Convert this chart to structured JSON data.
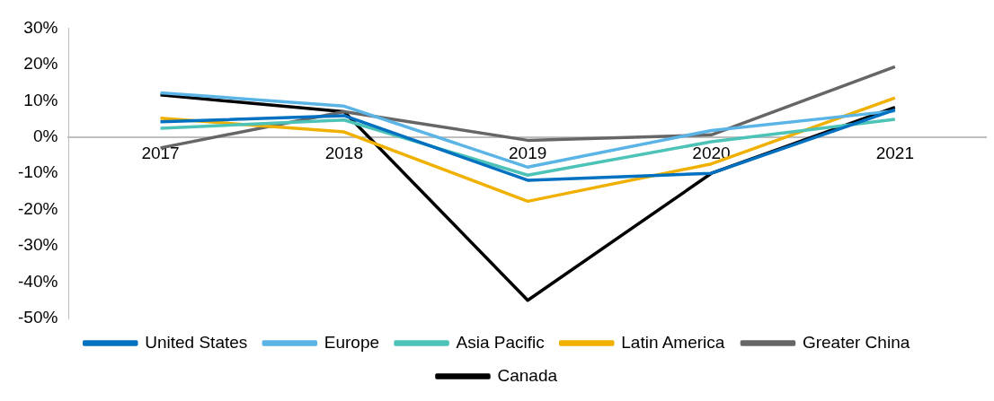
{
  "chart_data": {
    "type": "line",
    "categories": [
      "2017",
      "2018",
      "2019",
      "2020",
      "2021"
    ],
    "series": [
      {
        "name": "United States",
        "color": "#0070c0",
        "values": [
          4.2,
          5.9,
          -11.9,
          -10,
          7.5
        ]
      },
      {
        "name": "Europe",
        "color": "#5ab4e5",
        "values": [
          12.2,
          8.5,
          -8.3,
          1.8,
          7.2
        ]
      },
      {
        "name": "Asia Pacific",
        "color": "#4dc3b8",
        "values": [
          2.4,
          4.7,
          -10.5,
          -1.3,
          4.9
        ]
      },
      {
        "name": "Latin America",
        "color": "#f0b000",
        "values": [
          5.2,
          1.4,
          -17.7,
          -7.4,
          10.8
        ]
      },
      {
        "name": "Greater China",
        "color": "#666666",
        "values": [
          -3,
          7,
          -0.9,
          0.6,
          19.4
        ]
      },
      {
        "name": "Canada",
        "color": "#000000",
        "values": [
          11.6,
          7,
          -45,
          -10,
          8.2
        ]
      }
    ],
    "ylim": [
      -50,
      30
    ],
    "yticks": [
      {
        "value": -50,
        "label": "-50%"
      },
      {
        "value": -40,
        "label": "-40%"
      },
      {
        "value": -30,
        "label": "-30%"
      },
      {
        "value": -20,
        "label": "-20%"
      },
      {
        "value": -10,
        "label": "-10%"
      },
      {
        "value": 0,
        "label": "0%"
      },
      {
        "value": 10,
        "label": "10%"
      },
      {
        "value": 20,
        "label": "20%"
      },
      {
        "value": 30,
        "label": "30%"
      }
    ],
    "grid": false,
    "legend": "bottom",
    "marker": "none",
    "line_style": "solid"
  }
}
